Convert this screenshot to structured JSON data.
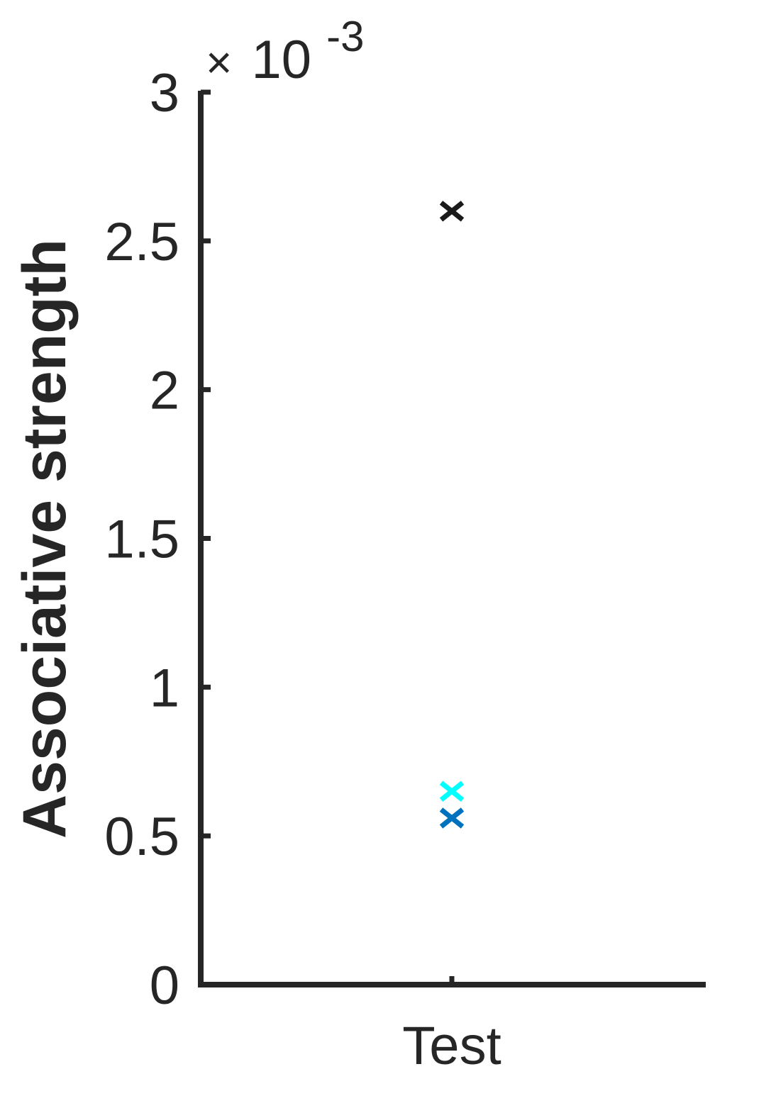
{
  "chart_data": {
    "type": "scatter",
    "title": "",
    "xlabel": "",
    "ylabel": "Associative strength",
    "y_exponent": {
      "times": "×",
      "base": "10",
      "power": "-3"
    },
    "categories": [
      "Test"
    ],
    "ylim": [
      0,
      3
    ],
    "yticks": [
      {
        "value": 0,
        "label": "0"
      },
      {
        "value": 0.5,
        "label": "0.5"
      },
      {
        "value": 1,
        "label": "1"
      },
      {
        "value": 1.5,
        "label": "1.5"
      },
      {
        "value": 2,
        "label": "2"
      },
      {
        "value": 2.5,
        "label": "2.5"
      },
      {
        "value": 3,
        "label": "3"
      }
    ],
    "marker": "x",
    "grid": false,
    "series": [
      {
        "category": "Test",
        "y": 2.6,
        "color": "#1a1a1a"
      },
      {
        "category": "Test",
        "y": 0.65,
        "color": "#00ffff"
      },
      {
        "category": "Test",
        "y": 0.56,
        "color": "#0072bd"
      }
    ],
    "axis_color": "#262626"
  }
}
